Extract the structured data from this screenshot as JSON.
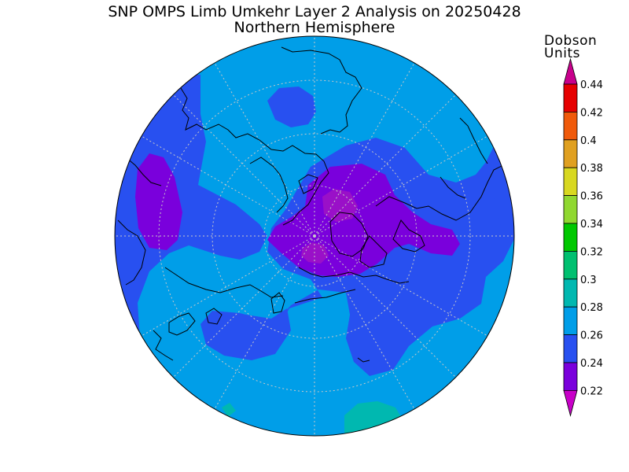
{
  "header": {
    "title": "SNP OMPS Limb Umkehr Layer 2 Analysis on 20250428",
    "subtitle": "Northern Hemisphere"
  },
  "legend": {
    "units_line1": "Dobson",
    "units_line2": "Units",
    "levels": [
      {
        "label": "0.44",
        "color": "#e8007a"
      },
      {
        "label": "0.42",
        "color": "#e60000"
      },
      {
        "label": "0.4",
        "color": "#f05a0a"
      },
      {
        "label": "0.38",
        "color": "#e0a020"
      },
      {
        "label": "0.36",
        "color": "#d8d820"
      },
      {
        "label": "0.34",
        "color": "#90d830"
      },
      {
        "label": "0.32",
        "color": "#00c800"
      },
      {
        "label": "0.3",
        "color": "#00c070"
      },
      {
        "label": "0.28",
        "color": "#00b8b0"
      },
      {
        "label": "0.26",
        "color": "#009ee8"
      },
      {
        "label": "0.24",
        "color": "#2850f0"
      },
      {
        "label": "0.22",
        "color": "#7a00dc"
      }
    ],
    "top_arrow_color": "#c8008c",
    "bottom_arrow_color": "#c800c8"
  },
  "map": {
    "projection": "north-polar-stereographic",
    "colors": {
      "background": "#009ee8",
      "band_024_026": "#2850f0",
      "band_022_024": "#7a00dc",
      "band_020_022": "#9a10c8",
      "band_028_030": "#00b8b0"
    }
  }
}
